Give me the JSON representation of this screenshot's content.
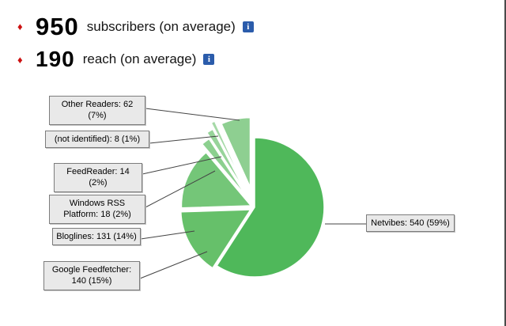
{
  "bullet_glyph": "♦",
  "info_icon_glyph": "i",
  "stats": [
    {
      "value": "950",
      "label": "subscribers (on average)"
    },
    {
      "value": "190",
      "label": "reach (on average)"
    }
  ],
  "colors": {
    "bullet": "#cc1111",
    "info_icon_bg": "#2b5cab",
    "callout_bg": "#e9e9e9",
    "callout_border": "#7c7c7c",
    "connector": "#444444",
    "pie_main_green": "#4fb85a"
  },
  "chart_data": {
    "type": "pie",
    "title": "",
    "legend_position": "callout-boxes",
    "center": [
      322,
      262
    ],
    "radius": 88,
    "slices": [
      {
        "name": "Netvibes",
        "value": 540,
        "percent": "59%",
        "label": "Netvibes: 540 (59%)",
        "color": "#4fb85a",
        "explode": 0
      },
      {
        "name": "Google Feedfetcher",
        "value": 140,
        "percent": "15%",
        "label": "Google Feedfetcher: 140 (15%)",
        "color": "#66c06a",
        "explode": 6
      },
      {
        "name": "Bloglines",
        "value": 131,
        "percent": "14%",
        "label": "Bloglines: 131 (14%)",
        "color": "#74c678",
        "explode": 5
      },
      {
        "name": "Windows RSS Platform",
        "value": 18,
        "percent": "2%",
        "label": "Windows RSS Platform: 18 (2%)",
        "color": "#8cd08f",
        "explode": 16
      },
      {
        "name": "FeedReader",
        "value": 14,
        "percent": "2%",
        "label": "FeedReader: 14 (2%)",
        "color": "#97d49a",
        "explode": 24
      },
      {
        "name": "(not identified)",
        "value": 8,
        "percent": "1%",
        "label": "(not identified): 8 (1%)",
        "color": "#a5d9a7",
        "explode": 32
      },
      {
        "name": "Other Readers",
        "value": 62,
        "percent": "7%",
        "label": "Other Readers: 62 (7%)",
        "color": "#8ecf91",
        "explode": 26
      }
    ]
  }
}
